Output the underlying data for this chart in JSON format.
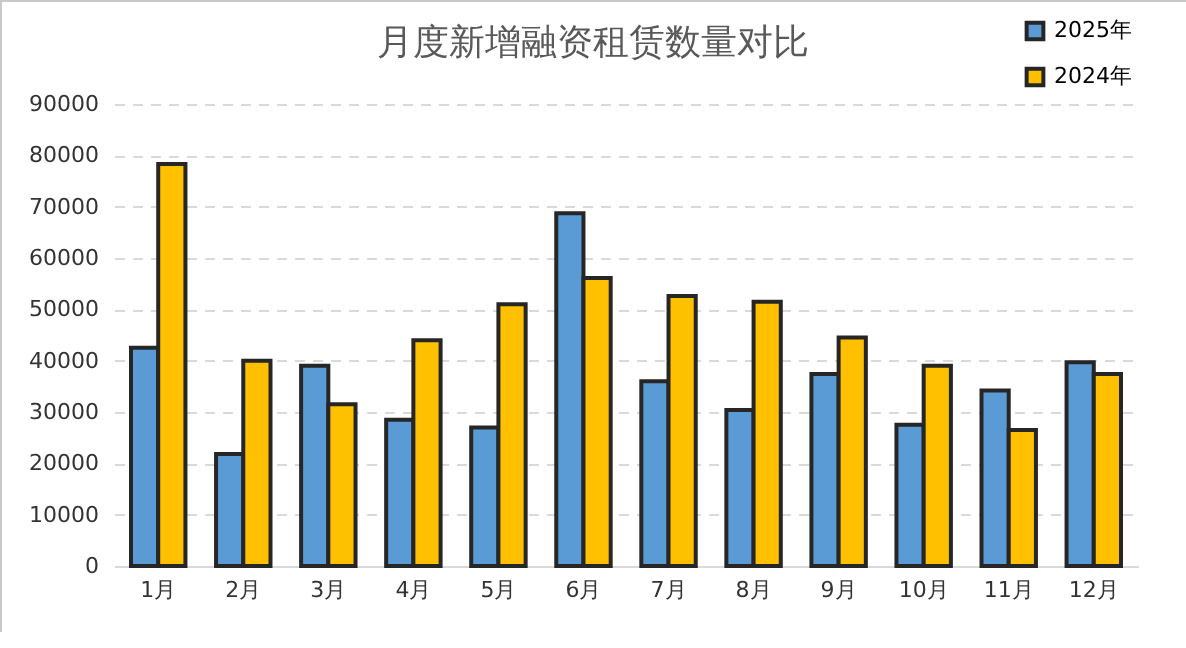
{
  "chart_data": {
    "type": "bar",
    "title": "月度新增融资租赁数量对比",
    "categories": [
      "1月",
      "2月",
      "3月",
      "4月",
      "5月",
      "6月",
      "7月",
      "8月",
      "9月",
      "10月",
      "11月",
      "12月"
    ],
    "series": [
      {
        "name": "2025年",
        "color": "#5b9bd5",
        "values": [
          42500,
          21800,
          39000,
          28500,
          27000,
          68700,
          36000,
          30400,
          37400,
          27500,
          34200,
          39700
        ]
      },
      {
        "name": "2024年",
        "color": "#ffc000",
        "values": [
          78300,
          40000,
          31500,
          44000,
          51000,
          56100,
          52600,
          51500,
          44500,
          39000,
          26500,
          37400
        ]
      }
    ],
    "ylim": [
      0,
      90000
    ],
    "yticks": [
      0,
      10000,
      20000,
      30000,
      40000,
      50000,
      60000,
      70000,
      80000,
      90000
    ],
    "grid": "y",
    "legend": "top right"
  }
}
